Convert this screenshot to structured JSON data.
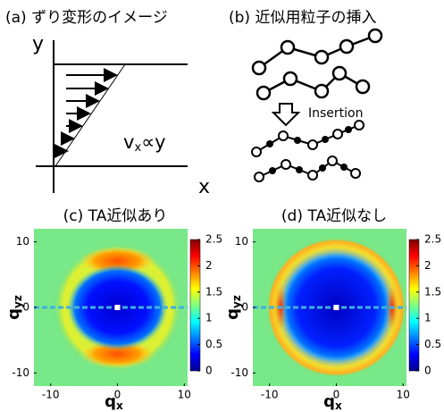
{
  "diagram_a": {
    "title": "(a) ずり変形のイメージ",
    "y_axis": "y",
    "x_axis": "x",
    "formula_v": "v",
    "formula_sub": "x",
    "formula_rest": "∝y"
  },
  "diagram_b": {
    "title": "(b) 近似用粒子の挿入",
    "arrow_label": "Insertion"
  },
  "chart_data": [
    {
      "type": "heatmap",
      "title": "(c) TA近似あり",
      "x_label": "q",
      "x_label_sub": "x",
      "y_label": "q",
      "y_label_sub": "yz",
      "xlim": [
        -12.5,
        10.5
      ],
      "ylim": [
        -12,
        12
      ],
      "xticks": [
        -10,
        0,
        10
      ],
      "yticks": [
        -10,
        0,
        10
      ],
      "clim": [
        0,
        2.5
      ],
      "cticks": [
        0,
        0.5,
        1,
        1.5,
        2,
        2.5
      ],
      "colormap": "jet"
    },
    {
      "type": "heatmap",
      "title": "(d) TA近似なし",
      "x_label": "q",
      "x_label_sub": "x",
      "y_label": "q",
      "y_label_sub": "yz",
      "xlim": [
        -12.5,
        10.5
      ],
      "ylim": [
        -12,
        12
      ],
      "xticks": [
        -10,
        0,
        10
      ],
      "yticks": [
        -10,
        0,
        10
      ],
      "clim": [
        0,
        2.5
      ],
      "cticks": [
        0,
        0.5,
        1,
        1.5,
        2,
        2.5
      ],
      "colormap": "jet"
    }
  ]
}
